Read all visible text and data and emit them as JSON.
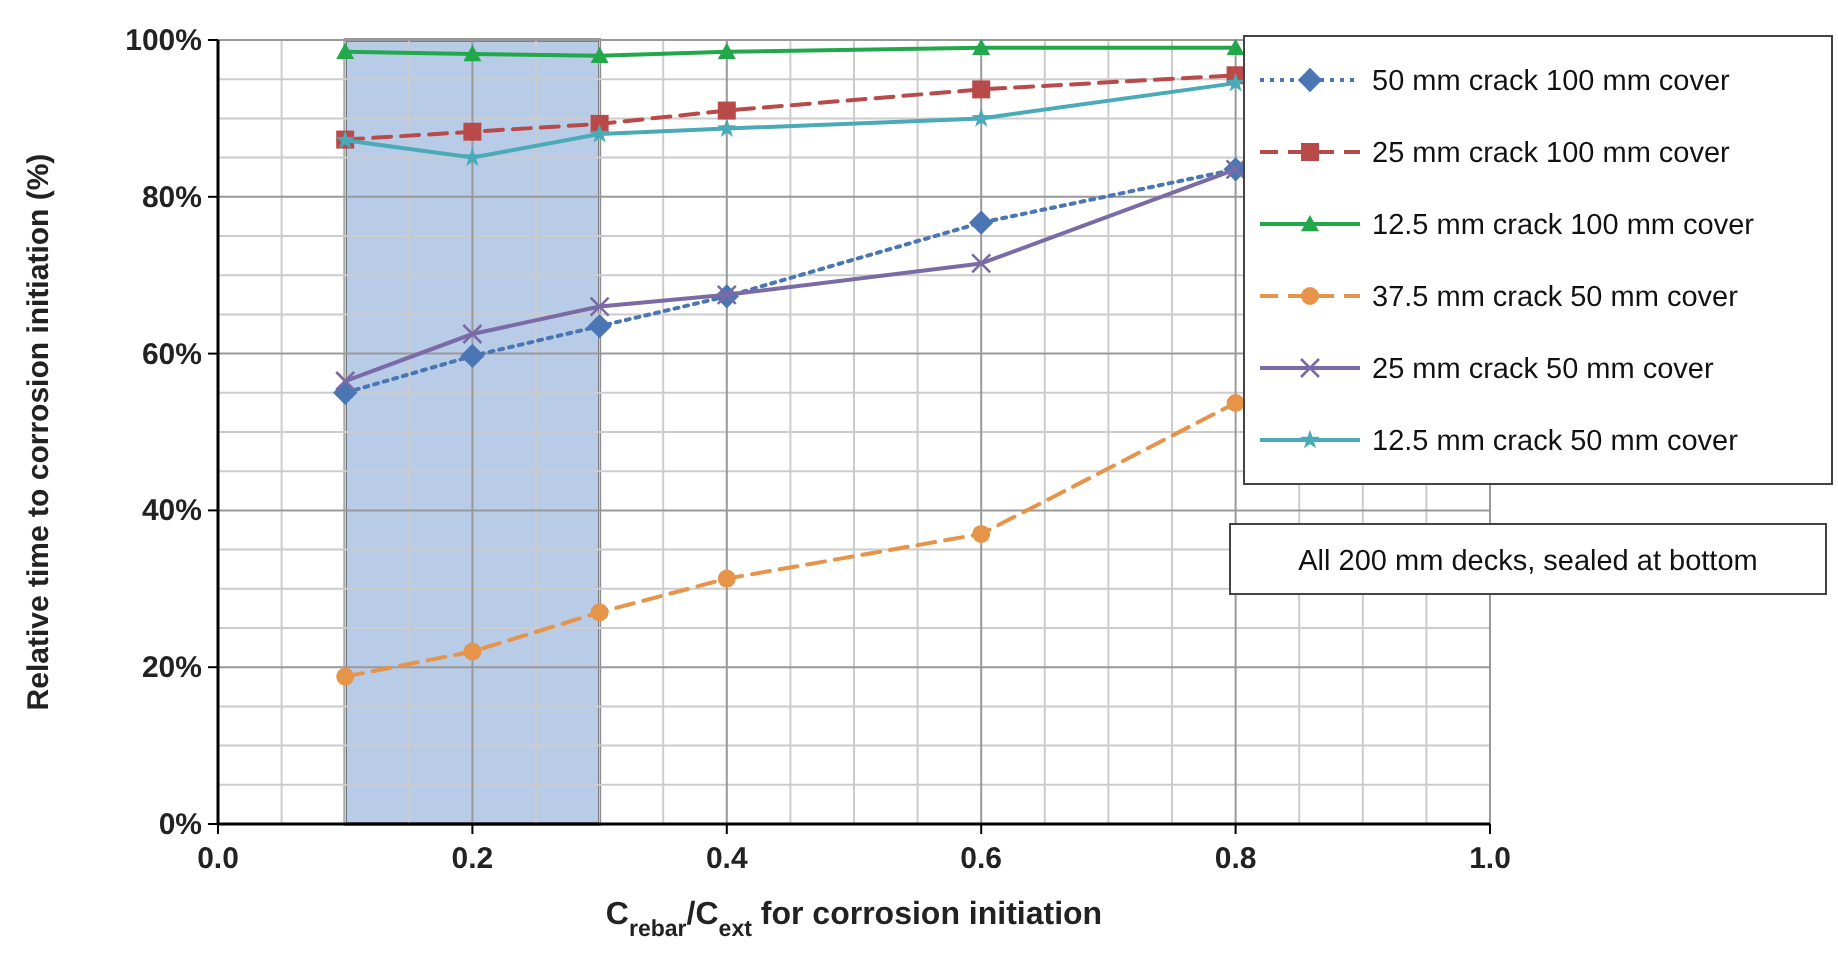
{
  "chart_data": {
    "type": "line",
    "xlabel": "C$_{rebar}$/C$_{ext}$ for corrosion initiation",
    "ylabel": "Relative time to corrosion initiation (%)",
    "x": [
      0.1,
      0.2,
      0.3,
      0.4,
      0.6,
      0.8
    ],
    "series": [
      {
        "name": "50 mm crack 100 mm cover",
        "color": "#4a77b4",
        "marker": "diamond",
        "line_style": "dotted",
        "values": [
          55,
          59.7,
          63.5,
          67.3,
          76.7,
          83.5
        ]
      },
      {
        "name": "25 mm crack 100 mm cover",
        "color": "#b84a4a",
        "marker": "square",
        "line_style": "dashed",
        "values": [
          87.3,
          88.3,
          89.3,
          91,
          93.7,
          95.5
        ]
      },
      {
        "name": "12.5 mm crack 100 mm cover",
        "color": "#22a84a",
        "marker": "triangle",
        "line_style": "solid",
        "values": [
          98.5,
          98.2,
          98,
          98.5,
          99,
          99
        ]
      },
      {
        "name": "37.5 mm crack 50 mm cover",
        "color": "#e6944a",
        "marker": "circle",
        "line_style": "dashed",
        "values": [
          18.8,
          22,
          27,
          31.3,
          37,
          53.7
        ]
      },
      {
        "name": "25 mm crack 50 mm cover",
        "color": "#7a6aa6",
        "marker": "cross",
        "line_style": "solid",
        "values": [
          56.5,
          62.5,
          66,
          67.5,
          71.5,
          83.5
        ]
      },
      {
        "name": "12.5 mm crack 50 mm cover",
        "color": "#4aaab8",
        "marker": "star",
        "line_style": "solid",
        "values": [
          87.2,
          85,
          88,
          88.7,
          90,
          94.5
        ]
      }
    ],
    "xlim": [
      0,
      1
    ],
    "xticks": [
      {
        "value": 0,
        "label": "0.0"
      },
      {
        "value": 0.2,
        "label": "0.2"
      },
      {
        "value": 0.4,
        "label": "0.4"
      },
      {
        "value": 0.6,
        "label": "0.6"
      },
      {
        "value": 0.8,
        "label": "0.8"
      },
      {
        "value": 1,
        "label": "1.0"
      }
    ],
    "ylim": [
      0,
      100
    ],
    "yticks": [
      {
        "value": 0,
        "label": "0%"
      },
      {
        "value": 20,
        "label": "20%"
      },
      {
        "value": 40,
        "label": "40%"
      },
      {
        "value": 60,
        "label": "60%"
      },
      {
        "value": 80,
        "label": "80%"
      },
      {
        "value": 100,
        "label": "100%"
      }
    ],
    "bands": [
      {
        "axis": "x",
        "from": 0.1,
        "to": 0.3,
        "color": "#b8cce8"
      }
    ],
    "annotations": [
      "All 200 mm decks, sealed at bottom"
    ],
    "grid": true,
    "legend": "top right"
  }
}
